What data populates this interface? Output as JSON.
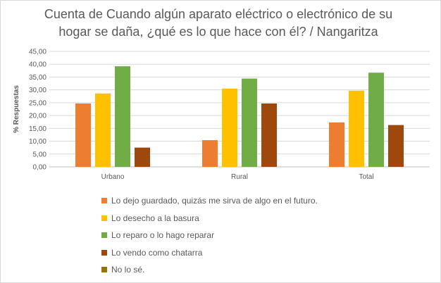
{
  "chart_data": {
    "type": "bar",
    "title": "Cuenta de Cuando algún aparato eléctrico o electrónico de su hogar se daña, ¿qué es lo que hace con él? / Nangaritza",
    "ylabel": "% Respuestas",
    "xlabel": "",
    "categories": [
      "Urbano",
      "Rural",
      "Total"
    ],
    "ylim": [
      0,
      45
    ],
    "yticks": [
      "0,00",
      "5,00",
      "10,00",
      "15,00",
      "20,00",
      "25,00",
      "30,00",
      "35,00",
      "40,00",
      "45,00"
    ],
    "grid": true,
    "legend_position": "bottom",
    "series": [
      {
        "name": "Lo dejo guardado, quizás me sirva de algo en el futuro.",
        "color": "#ED7D31",
        "values": [
          24.7,
          10.4,
          17.3
        ]
      },
      {
        "name": "Lo desecho a la basura",
        "color": "#FFC000",
        "values": [
          28.6,
          30.5,
          29.7
        ]
      },
      {
        "name": "Lo reparo o lo hago reparar",
        "color": "#70AD47",
        "values": [
          39.2,
          34.4,
          36.7
        ]
      },
      {
        "name": "Lo vendo como chatarra",
        "color": "#9E480E",
        "values": [
          7.5,
          24.7,
          16.3
        ]
      },
      {
        "name": "No lo sé.",
        "color": "#997300",
        "values": [
          0,
          0,
          0
        ]
      }
    ]
  }
}
